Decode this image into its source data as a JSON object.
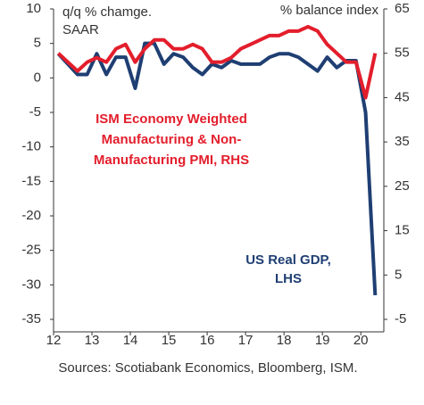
{
  "chart_data": {
    "type": "line",
    "left_axis_label": [
      "q/q % chamge.",
      "SAAR"
    ],
    "right_axis_label": "% balance index",
    "source": "Sources: Scotiabank Economics, Bloomberg, ISM.",
    "annotations": {
      "pmi": [
        "ISM Economy Weighted",
        "Manufacturing & Non-",
        "Manufacturing PMI, RHS"
      ],
      "gdp": [
        "US Real GDP,",
        "LHS"
      ]
    },
    "x": [
      12.125,
      12.375,
      12.625,
      12.875,
      13.125,
      13.375,
      13.625,
      13.875,
      14.125,
      14.375,
      14.625,
      14.875,
      15.125,
      15.375,
      15.625,
      15.875,
      16.125,
      16.375,
      16.625,
      16.875,
      17.125,
      17.375,
      17.625,
      17.875,
      18.125,
      18.375,
      18.625,
      18.875,
      19.125,
      19.375,
      19.625,
      19.875,
      20.125,
      20.375
    ],
    "series": [
      {
        "name": "US Real GDP",
        "color": "#1f3f73",
        "values": [
          3.5,
          2,
          0.5,
          0.5,
          3.5,
          0.5,
          3,
          3,
          -1.5,
          5,
          5,
          2,
          3.5,
          3,
          1.5,
          0.5,
          2,
          1.5,
          2.5,
          2,
          2,
          2,
          3,
          3.5,
          3.5,
          3,
          2,
          1,
          3,
          1.5,
          2.5,
          2.5,
          -5,
          -31.5
        ]
      },
      {
        "name": "ISM Economy Weighted PMI",
        "color": "#e31e2c",
        "axis": "y2",
        "values": [
          55,
          53,
          51,
          53,
          54,
          53,
          56,
          57,
          53,
          56,
          58,
          58,
          56,
          56,
          57,
          56,
          53,
          53,
          54,
          56,
          57,
          58,
          59,
          59,
          60,
          60,
          61,
          60,
          57,
          55,
          53,
          53,
          45,
          55
        ]
      }
    ],
    "xlim": [
      12,
      20.6
    ],
    "xticks": [
      12,
      13,
      14,
      15,
      16,
      17,
      18,
      19,
      20
    ],
    "ylim": [
      -35,
      10
    ],
    "yticks": [
      10,
      5,
      0,
      -5,
      -10,
      -15,
      -20,
      -25,
      -30,
      -35
    ],
    "y2lim": [
      -5,
      65
    ],
    "y2ticks": [
      65,
      55,
      45,
      35,
      25,
      15,
      5,
      -5
    ]
  }
}
